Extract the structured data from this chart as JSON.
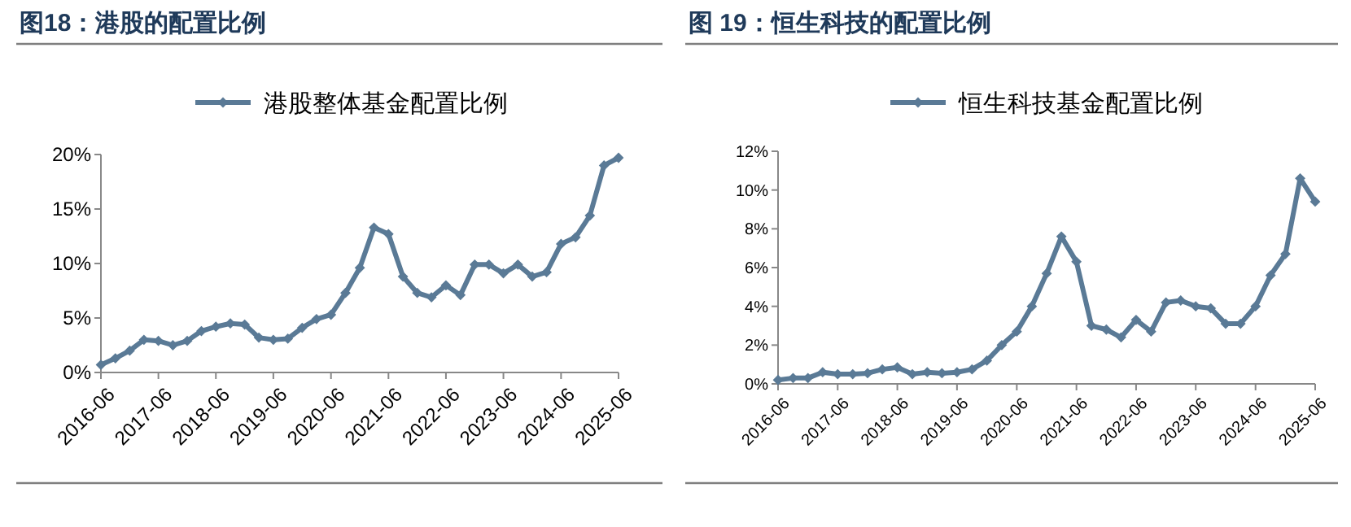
{
  "chart_data": [
    {
      "type": "line",
      "title": "图18：港股的配置比例",
      "x": [
        "2016-06",
        "2016-09",
        "2016-12",
        "2017-03",
        "2017-06",
        "2017-09",
        "2017-12",
        "2018-03",
        "2018-06",
        "2018-09",
        "2018-12",
        "2019-03",
        "2019-06",
        "2019-09",
        "2019-12",
        "2020-03",
        "2020-06",
        "2020-09",
        "2020-12",
        "2021-03",
        "2021-06",
        "2021-09",
        "2021-12",
        "2022-03",
        "2022-06",
        "2022-09",
        "2022-12",
        "2023-03",
        "2023-06",
        "2023-09",
        "2023-12",
        "2024-03",
        "2024-06",
        "2024-09",
        "2024-12",
        "2025-03",
        "2025-06"
      ],
      "series": [
        {
          "name": "港股整体基金配置比例",
          "color": "#5a7a96",
          "values": [
            0.7,
            1.3,
            2.0,
            3.0,
            2.9,
            2.5,
            2.9,
            3.8,
            4.2,
            4.5,
            4.4,
            3.2,
            3.0,
            3.1,
            4.1,
            4.9,
            5.3,
            7.3,
            9.6,
            13.3,
            12.7,
            8.8,
            7.3,
            6.9,
            8.0,
            7.1,
            9.9,
            9.9,
            9.1,
            9.9,
            8.8,
            9.2,
            11.8,
            12.4,
            14.4,
            19.0,
            19.7
          ]
        }
      ],
      "xlim": [
        "2016-06",
        "2025-06"
      ],
      "xticks": [
        "2016-06",
        "2017-06",
        "2018-06",
        "2019-06",
        "2020-06",
        "2021-06",
        "2022-06",
        "2023-06",
        "2024-06",
        "2025-06"
      ],
      "ylim": [
        0,
        20
      ],
      "yticks": [
        {
          "value": 0,
          "label": "0%"
        },
        {
          "value": 5,
          "label": "5%"
        },
        {
          "value": 10,
          "label": "10%"
        },
        {
          "value": 15,
          "label": "15%"
        },
        {
          "value": 20,
          "label": "20%"
        }
      ],
      "grid": false,
      "legend": "top",
      "marker": "diamond",
      "line_style": "solid"
    },
    {
      "type": "line",
      "title": "图 19：恒生科技的配置比例",
      "x": [
        "2016-06",
        "2016-09",
        "2016-12",
        "2017-03",
        "2017-06",
        "2017-09",
        "2017-12",
        "2018-03",
        "2018-06",
        "2018-09",
        "2018-12",
        "2019-03",
        "2019-06",
        "2019-09",
        "2019-12",
        "2020-03",
        "2020-06",
        "2020-09",
        "2020-12",
        "2021-03",
        "2021-06",
        "2021-09",
        "2021-12",
        "2022-03",
        "2022-06",
        "2022-09",
        "2022-12",
        "2023-03",
        "2023-06",
        "2023-09",
        "2023-12",
        "2024-03",
        "2024-06",
        "2024-09",
        "2024-12",
        "2025-03",
        "2025-06"
      ],
      "series": [
        {
          "name": "恒生科技基金配置比例",
          "color": "#5a7a96",
          "values": [
            0.2,
            0.3,
            0.3,
            0.6,
            0.5,
            0.5,
            0.55,
            0.75,
            0.85,
            0.5,
            0.6,
            0.55,
            0.6,
            0.75,
            1.2,
            2.0,
            2.7,
            4.0,
            5.7,
            7.6,
            6.3,
            3.0,
            2.8,
            2.4,
            3.3,
            2.7,
            4.2,
            4.3,
            4.0,
            3.9,
            3.1,
            3.1,
            4.0,
            5.6,
            6.7,
            10.6,
            9.4
          ]
        }
      ],
      "xlim": [
        "2016-06",
        "2025-06"
      ],
      "xticks": [
        "2016-06",
        "2017-06",
        "2018-06",
        "2019-06",
        "2020-06",
        "2021-06",
        "2022-06",
        "2023-06",
        "2024-06",
        "2025-06"
      ],
      "ylim": [
        0,
        12
      ],
      "yticks": [
        {
          "value": 0,
          "label": "0%"
        },
        {
          "value": 2,
          "label": "2%"
        },
        {
          "value": 4,
          "label": "4%"
        },
        {
          "value": 6,
          "label": "6%"
        },
        {
          "value": 8,
          "label": "8%"
        },
        {
          "value": 10,
          "label": "10%"
        },
        {
          "value": 12,
          "label": "12%"
        }
      ],
      "grid": false,
      "legend": "top",
      "marker": "diamond",
      "line_style": "solid"
    }
  ]
}
